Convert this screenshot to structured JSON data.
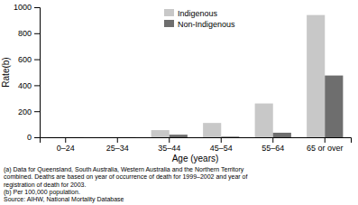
{
  "chart_data": {
    "type": "bar",
    "categories": [
      "0–24",
      "25–34",
      "35–44",
      "45–54",
      "55–64",
      "65 or over"
    ],
    "series": [
      {
        "name": "Indigenous",
        "color": "#c8c8c8",
        "values": [
          2,
          2,
          55,
          110,
          260,
          940
        ]
      },
      {
        "name": "Non-Indigenous",
        "color": "#6e6e6e",
        "values": [
          1,
          1,
          20,
          5,
          35,
          475
        ]
      }
    ],
    "xlabel": "Age (years)",
    "ylabel": "Rate(b)",
    "ylim": [
      0,
      1000
    ],
    "yticks": [
      0,
      200,
      400,
      600,
      800,
      1000
    ],
    "grid": false,
    "legend": "upper center",
    "annotations": [
      "(a) Data for Queensland, South Australia, Western Australia and the Northern Territory",
      "combined.  Deaths are based on year of occurrence of death for 1999–2002 and year of",
      "registration of death for 2003.",
      "(b) Per 100,000 population.",
      "Source: AIHW, National Mortality Database"
    ]
  }
}
